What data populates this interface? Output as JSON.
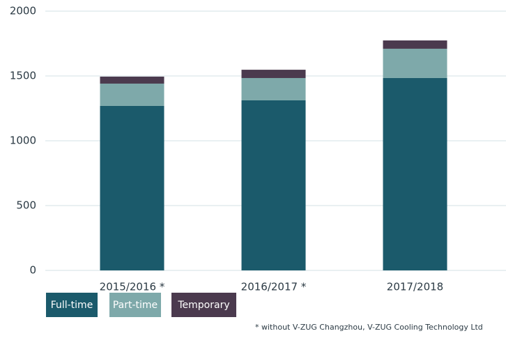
{
  "chart_data": {
    "type": "stacked_bar",
    "categories": [
      "2015/2016 *",
      "2016/2017 *",
      "2017/2018"
    ],
    "series": [
      {
        "name": "Full-time",
        "color": "#1b5a6b",
        "values": [
          1269,
          1312,
          1484
        ]
      },
      {
        "name": "Part-time",
        "color": "#7ea9aa",
        "values": [
          172,
          172,
          226
        ]
      },
      {
        "name": "Temporary",
        "color": "#4b3a4e",
        "values": [
          54,
          64,
          64
        ]
      }
    ],
    "ylim": [
      0,
      2000
    ],
    "yticks": [
      0,
      500,
      1000,
      1500,
      2000
    ],
    "grid": true,
    "legend": "bottom-left",
    "footnote": "* without V-ZUG Changzhou, V-ZUG Cooling Technology Ltd"
  }
}
